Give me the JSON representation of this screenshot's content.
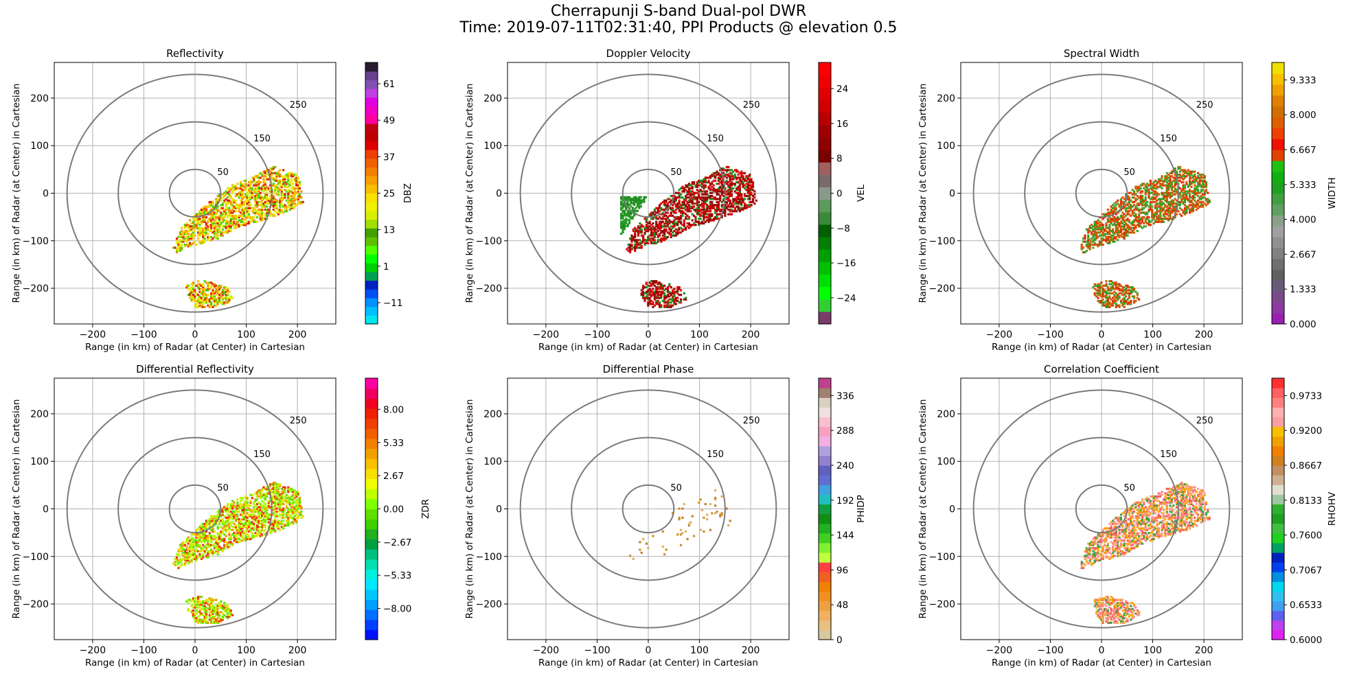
{
  "figure": {
    "title_line1": "Cherrapunji S-band Dual-pol DWR",
    "title_line2": "Time: 2019-07-11T02:31:40, PPI Products @ elevation 0.5"
  },
  "chart_data": [
    {
      "type": "heatmap",
      "title": "Reflectivity",
      "xlabel": "Range (in km) of Radar (at Center) in Cartesian",
      "ylabel": "Range (in km) of Radar (at Center) in Cartesian",
      "xlim": [
        -275,
        275
      ],
      "ylim": [
        -275,
        275
      ],
      "xticks": [
        -200,
        -100,
        0,
        100,
        200
      ],
      "yticks": [
        -200,
        -100,
        0,
        100,
        200
      ],
      "grid": true,
      "range_rings": [
        50,
        150,
        250
      ],
      "colorbar": {
        "label": "DBZ",
        "range": [
          -18,
          68
        ],
        "ticks": [
          -11,
          1,
          13,
          25,
          37,
          49,
          61
        ],
        "colors": [
          "#00e5ee",
          "#00c0ff",
          "#0090ff",
          "#0050f0",
          "#0020c0",
          "#00a050",
          "#00d000",
          "#00ff00",
          "#50ff00",
          "#60c000",
          "#40a000",
          "#a0e000",
          "#d8f000",
          "#f0f000",
          "#f8e000",
          "#f8c000",
          "#f8a000",
          "#f08000",
          "#f06000",
          "#f04000",
          "#e00000",
          "#c00000",
          "#c00010",
          "#ff00a0",
          "#f000c0",
          "#e000e0",
          "#c040e0",
          "#8050b0",
          "#6a4090",
          "#2a1a30"
        ]
      },
      "echo_colors": [
        "#f0e000",
        "#f8c000",
        "#d8f000",
        "#50d000",
        "#f09000",
        "#e02000"
      ]
    },
    {
      "type": "heatmap",
      "title": "Doppler Velocity",
      "xlabel": "Range (in km) of Radar (at Center) in Cartesian",
      "ylabel": "Range (in km) of Radar (at Center) in Cartesian",
      "xlim": [
        -275,
        275
      ],
      "ylim": [
        -275,
        275
      ],
      "xticks": [
        -200,
        -100,
        0,
        100,
        200
      ],
      "yticks": [
        -200,
        -100,
        0,
        100,
        200
      ],
      "grid": true,
      "range_rings": [
        50,
        150,
        250
      ],
      "colorbar": {
        "label": "VEL",
        "range": [
          -30,
          30
        ],
        "ticks": [
          -24,
          -16,
          -8,
          0,
          8,
          16,
          24
        ],
        "colors": [
          "#7a3a6a",
          "#30d030",
          "#00ff00",
          "#00e000",
          "#00c000",
          "#00a000",
          "#008000",
          "#006000",
          "#3a8a3a",
          "#5a9a5a",
          "#8a9a8a",
          "#7a6a6a",
          "#a06060",
          "#7a0000",
          "#900000",
          "#a00000",
          "#b80000",
          "#d00000",
          "#e00000",
          "#f00000",
          "#ff0000"
        ]
      },
      "echo_colors": [
        "#cc0000",
        "#a00000",
        "#e01010",
        "#209020",
        "#8a1010"
      ]
    },
    {
      "type": "heatmap",
      "title": "Spectral Width",
      "xlabel": "Range (in km) of Radar (at Center) in Cartesian",
      "ylabel": "Range (in km) of Radar (at Center) in Cartesian",
      "xlim": [
        -275,
        275
      ],
      "ylim": [
        -275,
        275
      ],
      "xticks": [
        -200,
        -100,
        0,
        100,
        200
      ],
      "yticks": [
        -200,
        -100,
        0,
        100,
        200
      ],
      "grid": true,
      "range_rings": [
        50,
        150,
        250
      ],
      "colorbar": {
        "label": "WIDTH",
        "range": [
          0,
          10
        ],
        "ticks": [
          "0.000",
          "1.333",
          "2.667",
          "4.000",
          "5.333",
          "6.667",
          "8.000",
          "9.333"
        ],
        "colors": [
          "#9a20b0",
          "#8a3aa0",
          "#7a4a8a",
          "#6a5a7a",
          "#606060",
          "#707070",
          "#808080",
          "#909090",
          "#a0a0a0",
          "#8aa08a",
          "#60a060",
          "#40a040",
          "#20a020",
          "#10b010",
          "#20c010",
          "#e04000",
          "#f01000",
          "#f04000",
          "#e06000",
          "#d07000",
          "#e08000",
          "#f0a000",
          "#f8c000",
          "#f0e000"
        ]
      },
      "echo_colors": [
        "#e03000",
        "#e05000",
        "#30a020",
        "#d06000",
        "#50a030"
      ]
    },
    {
      "type": "heatmap",
      "title": "Differential Reflectivity",
      "xlabel": "Range (in km) of Radar (at Center) in Cartesian",
      "ylabel": "Range (in km) of Radar (at Center) in Cartesian",
      "xlim": [
        -275,
        275
      ],
      "ylim": [
        -275,
        275
      ],
      "xticks": [
        -200,
        -100,
        0,
        100,
        200
      ],
      "yticks": [
        -200,
        -100,
        0,
        100,
        200
      ],
      "grid": true,
      "range_rings": [
        50,
        150,
        250
      ],
      "colorbar": {
        "label": "ZDR",
        "range": [
          -10.5,
          10.5
        ],
        "ticks": [
          "−8.00",
          "−5.33",
          "−2.67",
          "0.00",
          "2.67",
          "5.33",
          "8.00"
        ],
        "colors": [
          "#0010ff",
          "#0040ff",
          "#0070ff",
          "#00a0ff",
          "#00c8ff",
          "#00e8ff",
          "#00f0e0",
          "#00e0b0",
          "#00c080",
          "#00a040",
          "#20b020",
          "#40d000",
          "#60e000",
          "#80ff00",
          "#c0ff00",
          "#f0ff00",
          "#f8e000",
          "#f8c000",
          "#f0a000",
          "#f08000",
          "#f06000",
          "#f04000",
          "#f02000",
          "#f00020",
          "#f00060",
          "#ff00a0"
        ]
      },
      "echo_colors": [
        "#a0ff00",
        "#c0f000",
        "#60e000",
        "#e8e000",
        "#f09000",
        "#f03000"
      ]
    },
    {
      "type": "heatmap",
      "title": "Differential Phase",
      "xlabel": "Range (in km) of Radar (at Center) in Cartesian",
      "ylabel": "Range (in km) of Radar (at Center) in Cartesian",
      "xlim": [
        -275,
        275
      ],
      "ylim": [
        -275,
        275
      ],
      "xticks": [
        -200,
        -100,
        0,
        100,
        200
      ],
      "yticks": [
        -200,
        -100,
        0,
        100,
        200
      ],
      "grid": true,
      "range_rings": [
        50,
        150,
        250
      ],
      "colorbar": {
        "label": "PHIDP",
        "range": [
          0,
          360
        ],
        "ticks": [
          0,
          48,
          96,
          144,
          192,
          240,
          288,
          336
        ],
        "colors": [
          "#d8c8a0",
          "#e8c080",
          "#f0b060",
          "#f0a040",
          "#f09020",
          "#f08000",
          "#f06020",
          "#ff4040",
          "#c0ff40",
          "#80f030",
          "#40d020",
          "#20b020",
          "#109010",
          "#10a040",
          "#20c0c0",
          "#40a0e0",
          "#6070d0",
          "#6060c0",
          "#9080d0",
          "#b0a0e0",
          "#f0b0e0",
          "#f8a0c0",
          "#f8c0d0",
          "#f0e0e0",
          "#d8d0c0",
          "#a08070",
          "#c04090"
        ]
      },
      "echo_colors": [
        "#d09020",
        "#e0b060",
        "#c08030"
      ]
    },
    {
      "type": "heatmap",
      "title": "Correlation Coefficient",
      "xlabel": "Range (in km) of Radar (at Center) in Cartesian",
      "ylabel": "Range (in km) of Radar (at Center) in Cartesian",
      "xlim": [
        -275,
        275
      ],
      "ylim": [
        -275,
        275
      ],
      "xticks": [
        -200,
        -100,
        0,
        100,
        200
      ],
      "yticks": [
        -200,
        -100,
        0,
        100,
        200
      ],
      "grid": true,
      "range_rings": [
        50,
        150,
        250
      ],
      "colorbar": {
        "label": "RHOHV",
        "range": [
          0.6,
          1.0
        ],
        "ticks": [
          "0.6000",
          "0.6533",
          "0.7067",
          "0.7600",
          "0.8133",
          "0.8667",
          "0.9200",
          "0.9733"
        ],
        "colors": [
          "#e020f0",
          "#c040f0",
          "#6060f0",
          "#40a0f0",
          "#30c0f0",
          "#00d8f0",
          "#0090e0",
          "#0040f0",
          "#0020c0",
          "#00a060",
          "#20d020",
          "#40c040",
          "#20a020",
          "#30b030",
          "#a0c8a0",
          "#e0e0d0",
          "#d0b090",
          "#c09060",
          "#d08020",
          "#f08000",
          "#f0a000",
          "#f8c000",
          "#f8a0a0",
          "#ffb0b0",
          "#ff8080",
          "#ff6060",
          "#ff3030"
        ]
      },
      "echo_colors": [
        "#f0b030",
        "#f8a000",
        "#ff8080",
        "#ffa0a0",
        "#40a040",
        "#f06060"
      ]
    }
  ]
}
